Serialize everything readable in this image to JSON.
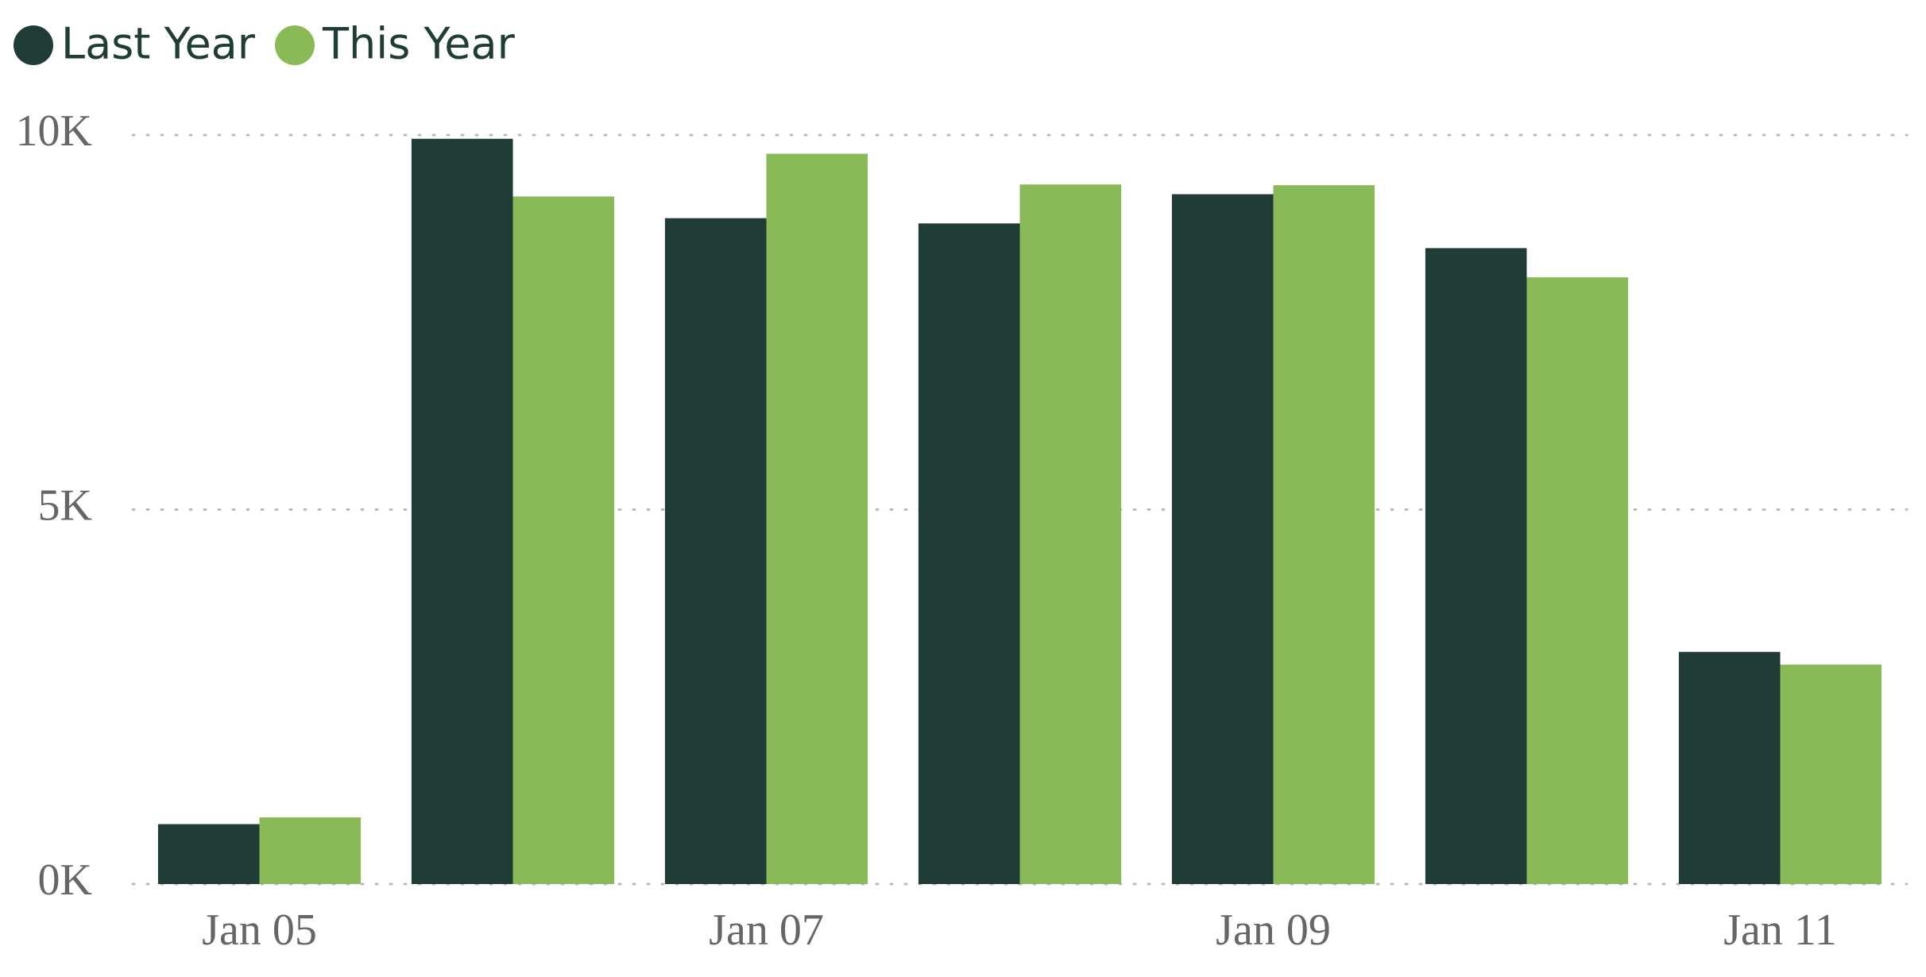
{
  "chart_data": {
    "type": "bar",
    "categories": [
      "Jan 05",
      null,
      "Jan 07",
      null,
      "Jan 09",
      null,
      "Jan 11"
    ],
    "series": [
      {
        "name": "Last Year",
        "color": "#1f3d36",
        "values": [
          800,
          9950,
          8890,
          8820,
          9210,
          8490,
          3100
        ]
      },
      {
        "name": "This Year",
        "color": "#8aba57",
        "values": [
          890,
          9180,
          9750,
          9340,
          9330,
          8100,
          2930
        ]
      }
    ],
    "ylim": [
      0,
      10000
    ],
    "yticks": [
      {
        "value": 0,
        "label": "0K"
      },
      {
        "value": 5000,
        "label": "5K"
      },
      {
        "value": 10000,
        "label": "10K"
      }
    ],
    "grid": true,
    "legend": "top-left"
  }
}
